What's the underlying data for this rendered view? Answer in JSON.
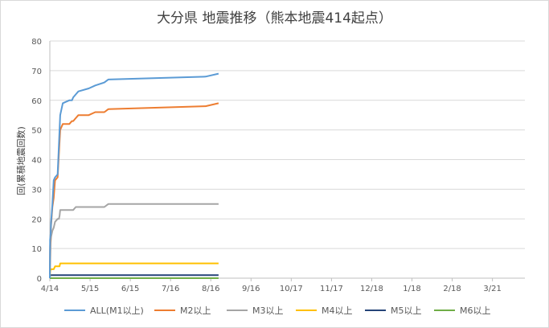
{
  "chart_data": {
    "type": "line",
    "title": "大分県 地震推移（熊本地震414起点）",
    "ylabel": "回(累積地震回数)",
    "xlabel": "",
    "ylim": [
      0,
      80
    ],
    "yticks": [
      0,
      10,
      20,
      30,
      40,
      50,
      60,
      70,
      80
    ],
    "xticks": [
      "4/14",
      "5/15",
      "6/15",
      "7/16",
      "8/16",
      "9/16",
      "10/17",
      "11/17",
      "12/18",
      "1/18",
      "2/18",
      "3/21"
    ],
    "x_start": "2016-04-14",
    "grid": "horizontal",
    "legend_position": "bottom",
    "series": [
      {
        "name": "ALL(M1以上)",
        "color": "#5b9bd5",
        "points": [
          [
            0,
            0
          ],
          [
            0.2,
            13
          ],
          [
            0.6,
            15
          ],
          [
            1,
            19
          ],
          [
            2,
            25
          ],
          [
            3,
            33
          ],
          [
            4,
            34
          ],
          [
            6,
            35
          ],
          [
            7,
            45
          ],
          [
            7.5,
            50
          ],
          [
            8,
            55
          ],
          [
            9,
            57
          ],
          [
            10,
            59
          ],
          [
            15,
            60
          ],
          [
            17,
            60
          ],
          [
            18,
            61
          ],
          [
            20,
            62
          ],
          [
            22,
            63
          ],
          [
            30,
            64
          ],
          [
            35,
            65
          ],
          [
            42,
            66
          ],
          [
            45,
            67
          ],
          [
            120,
            68
          ],
          [
            130,
            69
          ]
        ]
      },
      {
        "name": "M2以上",
        "color": "#ed7d31",
        "points": [
          [
            0,
            0
          ],
          [
            0.2,
            10
          ],
          [
            0.6,
            15
          ],
          [
            1,
            18
          ],
          [
            2,
            24
          ],
          [
            3,
            27
          ],
          [
            4,
            33
          ],
          [
            6,
            34
          ],
          [
            7,
            42
          ],
          [
            7.5,
            46
          ],
          [
            8,
            50
          ],
          [
            9,
            51
          ],
          [
            10,
            52
          ],
          [
            15,
            52
          ],
          [
            17,
            53
          ],
          [
            18,
            53
          ],
          [
            20,
            54
          ],
          [
            22,
            55
          ],
          [
            30,
            55
          ],
          [
            35,
            56
          ],
          [
            42,
            56
          ],
          [
            45,
            57
          ],
          [
            120,
            58
          ],
          [
            130,
            59
          ]
        ]
      },
      {
        "name": "M3以上",
        "color": "#a5a5a5",
        "points": [
          [
            0,
            0
          ],
          [
            0.2,
            4
          ],
          [
            0.6,
            12
          ],
          [
            1,
            14
          ],
          [
            2,
            16
          ],
          [
            3,
            17
          ],
          [
            4,
            19
          ],
          [
            6,
            20
          ],
          [
            7,
            20
          ],
          [
            7.5,
            21
          ],
          [
            8,
            23
          ],
          [
            10,
            23
          ],
          [
            15,
            23
          ],
          [
            17,
            23
          ],
          [
            18,
            23
          ],
          [
            20,
            24
          ],
          [
            30,
            24
          ],
          [
            35,
            24
          ],
          [
            42,
            24
          ],
          [
            45,
            25
          ],
          [
            130,
            25
          ]
        ]
      },
      {
        "name": "M4以上",
        "color": "#ffc000",
        "points": [
          [
            0,
            0
          ],
          [
            0.2,
            2
          ],
          [
            0.6,
            3
          ],
          [
            1,
            3
          ],
          [
            2,
            3
          ],
          [
            3,
            3
          ],
          [
            4,
            4
          ],
          [
            6,
            4
          ],
          [
            7,
            4
          ],
          [
            7.5,
            4
          ],
          [
            8,
            5
          ],
          [
            20,
            5
          ],
          [
            130,
            5
          ]
        ]
      },
      {
        "name": "M5以上",
        "color": "#264478",
        "points": [
          [
            0,
            0
          ],
          [
            0.2,
            1
          ],
          [
            130,
            1
          ]
        ]
      },
      {
        "name": "M6以上",
        "color": "#70ad47",
        "points": [
          [
            0,
            0
          ],
          [
            0.5,
            0
          ],
          [
            130,
            0
          ]
        ]
      }
    ]
  }
}
